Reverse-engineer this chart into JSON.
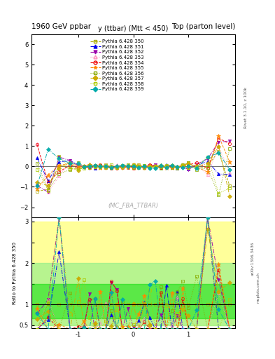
{
  "title_left": "1960 GeV ppbar",
  "title_right": "Top (parton level)",
  "ylabel_main": "y (ttbar) (Mtt < 450)",
  "ylabel_ratio": "Ratio to Pythia 6.428 350",
  "watermark": "(MC_FBA_TTBAR)",
  "xlim": [
    -1.85,
    1.85
  ],
  "ylim_main": [
    -2.5,
    6.5
  ],
  "ylim_ratio": [
    0.42,
    3.1
  ],
  "yticks_main": [
    -2,
    -1,
    0,
    1,
    2,
    3,
    4,
    5,
    6
  ],
  "series_labels": [
    "Pythia 6.428 350",
    "Pythia 6.428 351",
    "Pythia 6.428 352",
    "Pythia 6.428 353",
    "Pythia 6.428 354",
    "Pythia 6.428 355",
    "Pythia 6.428 356",
    "Pythia 6.428 357",
    "Pythia 6.428 358",
    "Pythia 6.428 359"
  ],
  "colors": [
    "#aaaa00",
    "#0000ee",
    "#9900aa",
    "#ff88bb",
    "#ee0000",
    "#ff8800",
    "#88aa00",
    "#ccaa00",
    "#aacc00",
    "#00aaaa"
  ],
  "markers": [
    "s",
    "^",
    "v",
    "^",
    "o",
    "*",
    "s",
    "D",
    "s",
    "D"
  ],
  "linestyles": [
    "--",
    "-.",
    "-.",
    ":",
    "-.",
    "--.",
    ":",
    "-.",
    ":",
    "-."
  ],
  "filleds": [
    false,
    true,
    true,
    false,
    false,
    true,
    false,
    true,
    false,
    true
  ],
  "background_color": "#ffffff",
  "green_inner_color": "#00dd00",
  "green_outer_color": "#88ee88",
  "yellow_color": "#ffff88"
}
